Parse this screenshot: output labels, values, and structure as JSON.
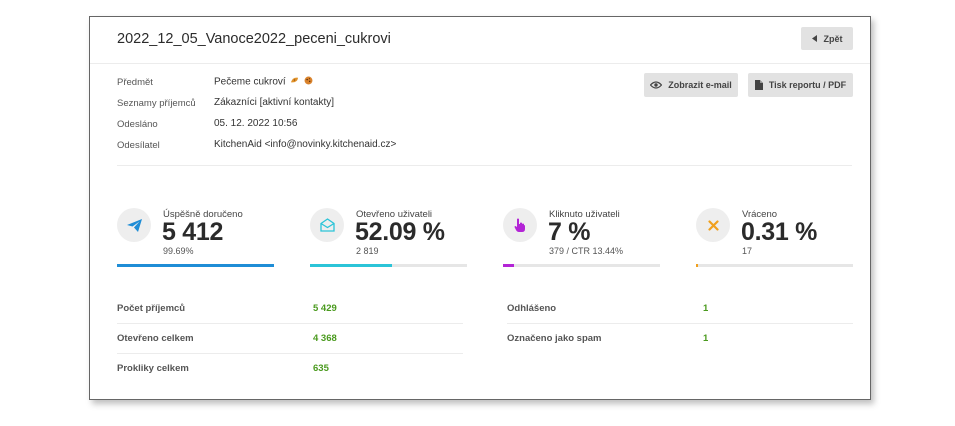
{
  "header": {
    "title": "2022_12_05_Vanoce2022_peceni_cukrovi",
    "back_label": "Zpět"
  },
  "actions": {
    "view_email_label": "Zobrazit e-mail",
    "print_label": "Tisk reportu / PDF"
  },
  "meta": {
    "subject_label": "Předmět",
    "subject_value": "Pečeme cukroví",
    "subject_emoji": [
      "cookie-emoji",
      "cookie-emoji"
    ],
    "lists_label": "Seznamy příjemců",
    "lists_value": "Zákazníci [aktivní kontakty]",
    "sent_label": "Odesláno",
    "sent_value": "05. 12. 2022 10:56",
    "sender_label": "Odesílatel",
    "sender_value": "KitchenAid <info@novinky.kitchenaid.cz>"
  },
  "stats": [
    {
      "label": "Úspěšně doručeno",
      "value": "5 412",
      "sub": "99.69%",
      "fill": 0.9969,
      "color": "#1f8dd6",
      "icon": "paper-plane-icon"
    },
    {
      "label": "Otevřeno uživateli",
      "value": "52.09 %",
      "sub": "2 819",
      "fill": 0.5209,
      "color": "#2bc4d8",
      "icon": "open-envelope-icon"
    },
    {
      "label": "Kliknuto uživateli",
      "value": "7 %",
      "sub": "379 / CTR 13.44%",
      "fill": 0.07,
      "color": "#b324d6",
      "icon": "pointer-hand-icon"
    },
    {
      "label": "Vráceno",
      "value": "0.31 %",
      "sub": "17",
      "fill": 0.0031,
      "color": "#f0a01e",
      "icon": "x-icon"
    }
  ],
  "summary": {
    "left": [
      {
        "label": "Počet příjemců",
        "value": "5 429"
      },
      {
        "label": "Otevřeno celkem",
        "value": "4 368"
      },
      {
        "label": "Prokliky celkem",
        "value": "635"
      }
    ],
    "right": [
      {
        "label": "Odhlášeno",
        "value": "1"
      },
      {
        "label": "Označeno jako spam",
        "value": "1"
      }
    ]
  },
  "colors": {
    "value_green": "#4a9a1e",
    "button_bg": "#e2e2e2"
  }
}
